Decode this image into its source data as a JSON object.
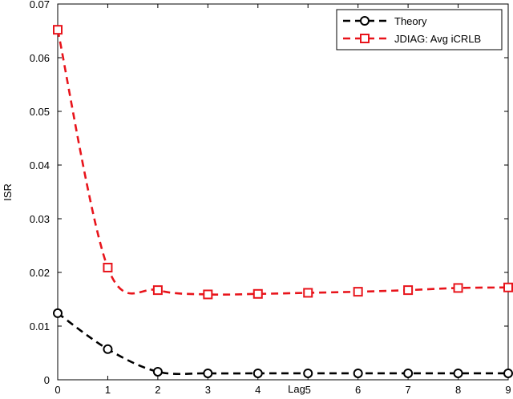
{
  "chart_data": {
    "type": "line",
    "title": "",
    "xlabel": "Lag",
    "ylabel": "ISR",
    "xlim": [
      0,
      9
    ],
    "ylim": [
      0,
      0.07
    ],
    "x_ticks": [
      "0",
      "1",
      "2",
      "3",
      "4",
      "5",
      "6",
      "7",
      "8",
      "9"
    ],
    "y_ticks": [
      "0",
      "0.01",
      "0.02",
      "0.03",
      "0.04",
      "0.05",
      "0.06",
      "0.07"
    ],
    "grid": false,
    "legend_position": "top-right",
    "x": [
      0,
      1,
      2,
      3,
      4,
      5,
      6,
      7,
      8,
      9
    ],
    "series": [
      {
        "name": "Theory",
        "color": "#000000",
        "marker": "circle",
        "line_style": "dashed",
        "values": [
          0.0124,
          0.0057,
          0.0015,
          0.0012,
          0.0012,
          0.0012,
          0.0012,
          0.0012,
          0.0012,
          0.0012
        ]
      },
      {
        "name": "JDIAG: Avg iCRLB",
        "color": "#e8141b",
        "marker": "square",
        "line_style": "dashed",
        "values": [
          0.0652,
          0.0209,
          0.0167,
          0.0159,
          0.016,
          0.0162,
          0.0164,
          0.0167,
          0.0171,
          0.0172
        ]
      }
    ]
  }
}
